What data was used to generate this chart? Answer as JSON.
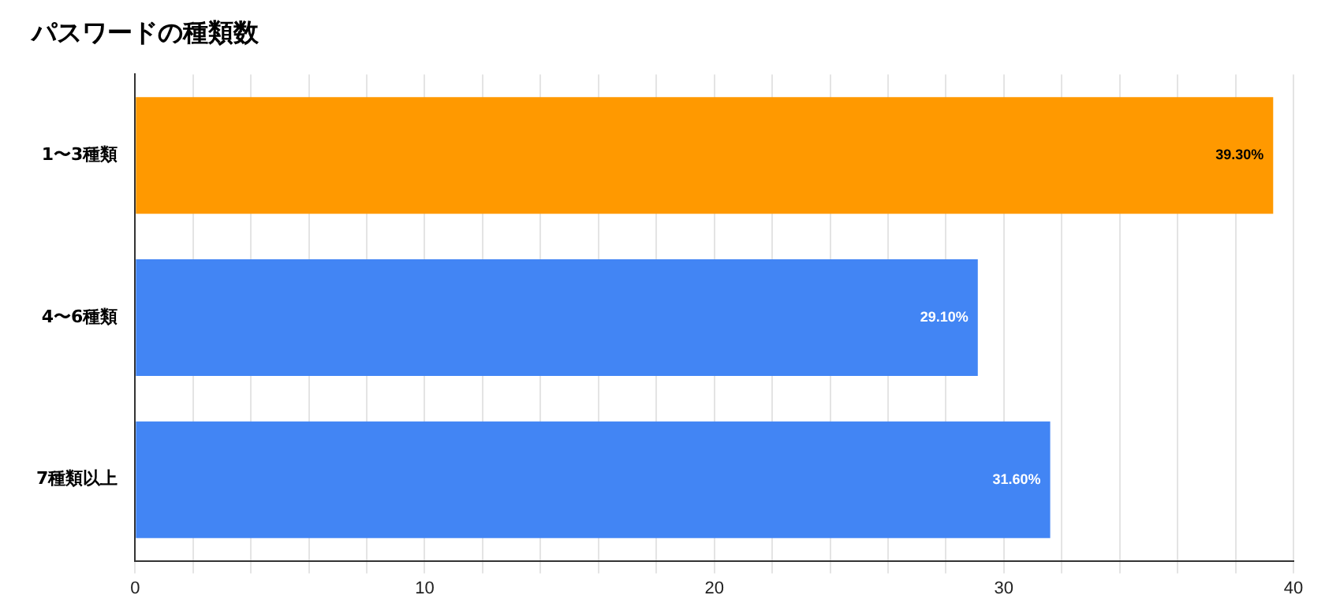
{
  "chart_data": {
    "type": "bar",
    "orientation": "horizontal",
    "title": "パスワードの種類数",
    "categories": [
      "1〜3種類",
      "4〜6種類",
      "7種類以上"
    ],
    "values": [
      39.3,
      29.1,
      31.6
    ],
    "colors": [
      "#ff9900",
      "#4285f4",
      "#4285f4"
    ],
    "value_labels": [
      "39.30%",
      "29.10%",
      "31.60%"
    ],
    "xlim": [
      0,
      40
    ],
    "xticks": [
      0,
      {
        "value": 2,
        "label": null
      },
      {
        "value": 4,
        "label": null
      },
      {
        "value": 6,
        "label": null
      },
      {
        "value": 8,
        "label": null
      },
      10,
      {
        "value": 12,
        "label": null
      },
      {
        "value": 14,
        "label": null
      },
      {
        "value": 16,
        "label": null
      },
      {
        "value": 18,
        "label": null
      },
      20,
      {
        "value": 22,
        "label": null
      },
      {
        "value": 24,
        "label": null
      },
      {
        "value": 26,
        "label": null
      },
      {
        "value": 28,
        "label": null
      },
      30,
      {
        "value": 32,
        "label": null
      },
      {
        "value": 34,
        "label": null
      },
      {
        "value": 36,
        "label": null
      },
      {
        "value": 38,
        "label": null
      },
      40
    ],
    "grid": "x",
    "legend": false
  }
}
